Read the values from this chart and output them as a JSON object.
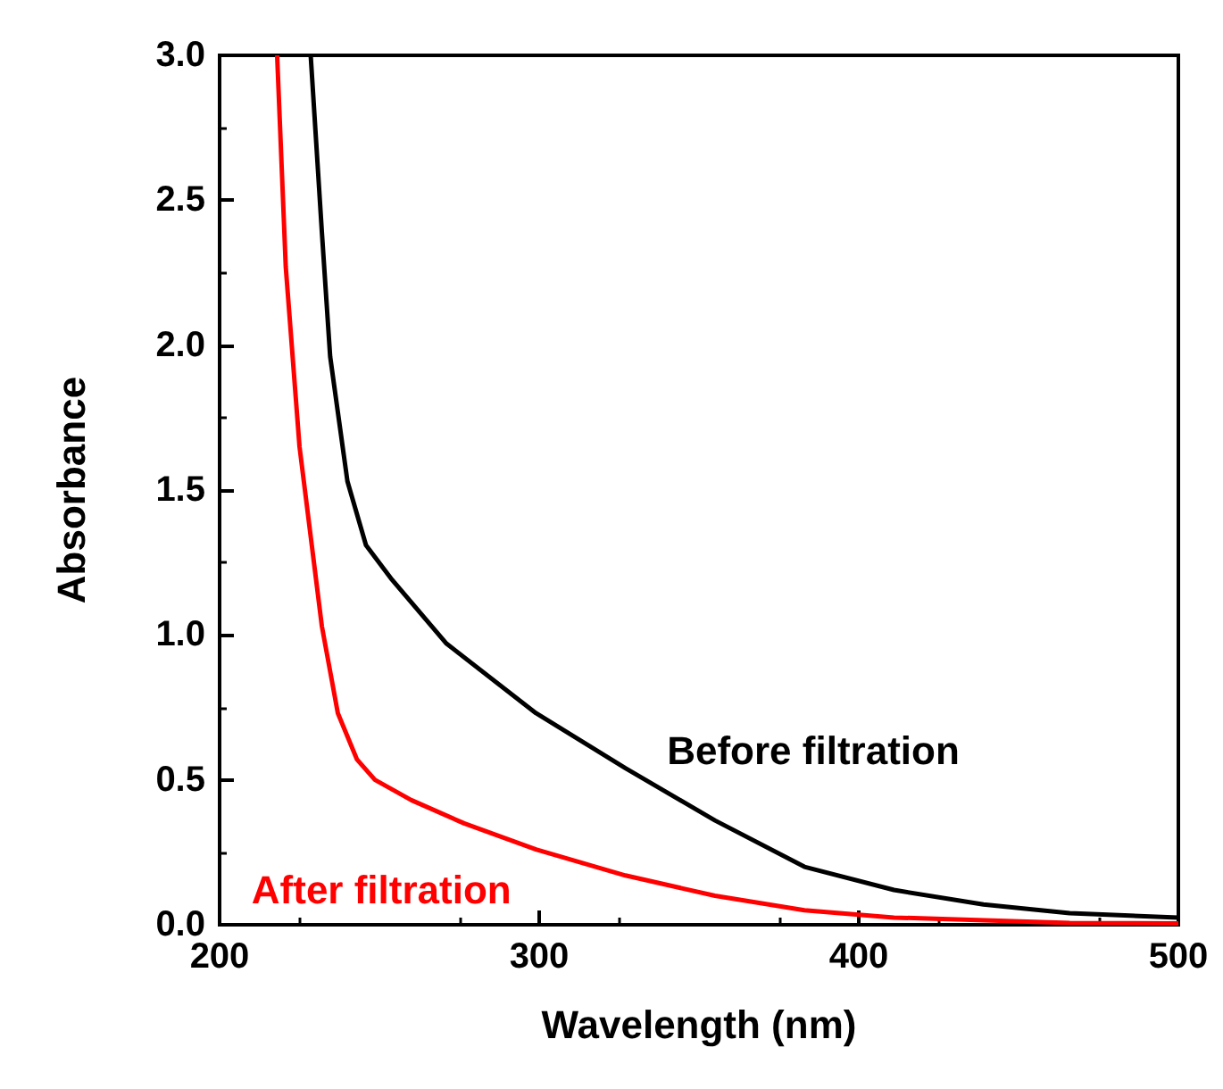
{
  "chart_data": {
    "type": "line",
    "xlabel": "Wavelength (nm)",
    "ylabel": "Absorbance",
    "xlim": [
      200,
      500
    ],
    "xticks": [
      200,
      300,
      400,
      500
    ],
    "ylim": [
      0,
      3.0
    ],
    "yticks": [
      {
        "value": 0,
        "label": "0.0"
      },
      {
        "value": 0.5,
        "label": "0.5"
      },
      {
        "value": 1,
        "label": "1.0"
      },
      {
        "value": 1.5,
        "label": "1.5"
      },
      {
        "value": 2,
        "label": "2.0"
      },
      {
        "value": 2.5,
        "label": "2.5"
      },
      {
        "value": 3,
        "label": "3.0"
      }
    ],
    "grid": false,
    "legend": false,
    "marker": "none",
    "line_style": "solid",
    "series": [
      {
        "name": "Before filtration",
        "color": "#000000",
        "x": [
          228.5,
          232,
          234.6,
          240,
          245.8,
          254,
          271,
          299,
          327,
          355,
          383,
          411,
          439,
          466,
          500
        ],
        "values": [
          3.0,
          2.39,
          1.96,
          1.53,
          1.31,
          1.19,
          0.97,
          0.73,
          0.54,
          0.36,
          0.2,
          0.12,
          0.07,
          0.04,
          0.025
        ]
      },
      {
        "name": "After filtration",
        "color": "#ff0000",
        "x": [
          218,
          220.7,
          225,
          232,
          237,
          243,
          248.6,
          260,
          276.5,
          299,
          327,
          355,
          383,
          411,
          466,
          500
        ],
        "values": [
          3.0,
          2.27,
          1.65,
          1.03,
          0.73,
          0.57,
          0.5,
          0.43,
          0.35,
          0.26,
          0.17,
          0.1,
          0.05,
          0.025,
          0.006,
          0.005
        ]
      }
    ]
  }
}
